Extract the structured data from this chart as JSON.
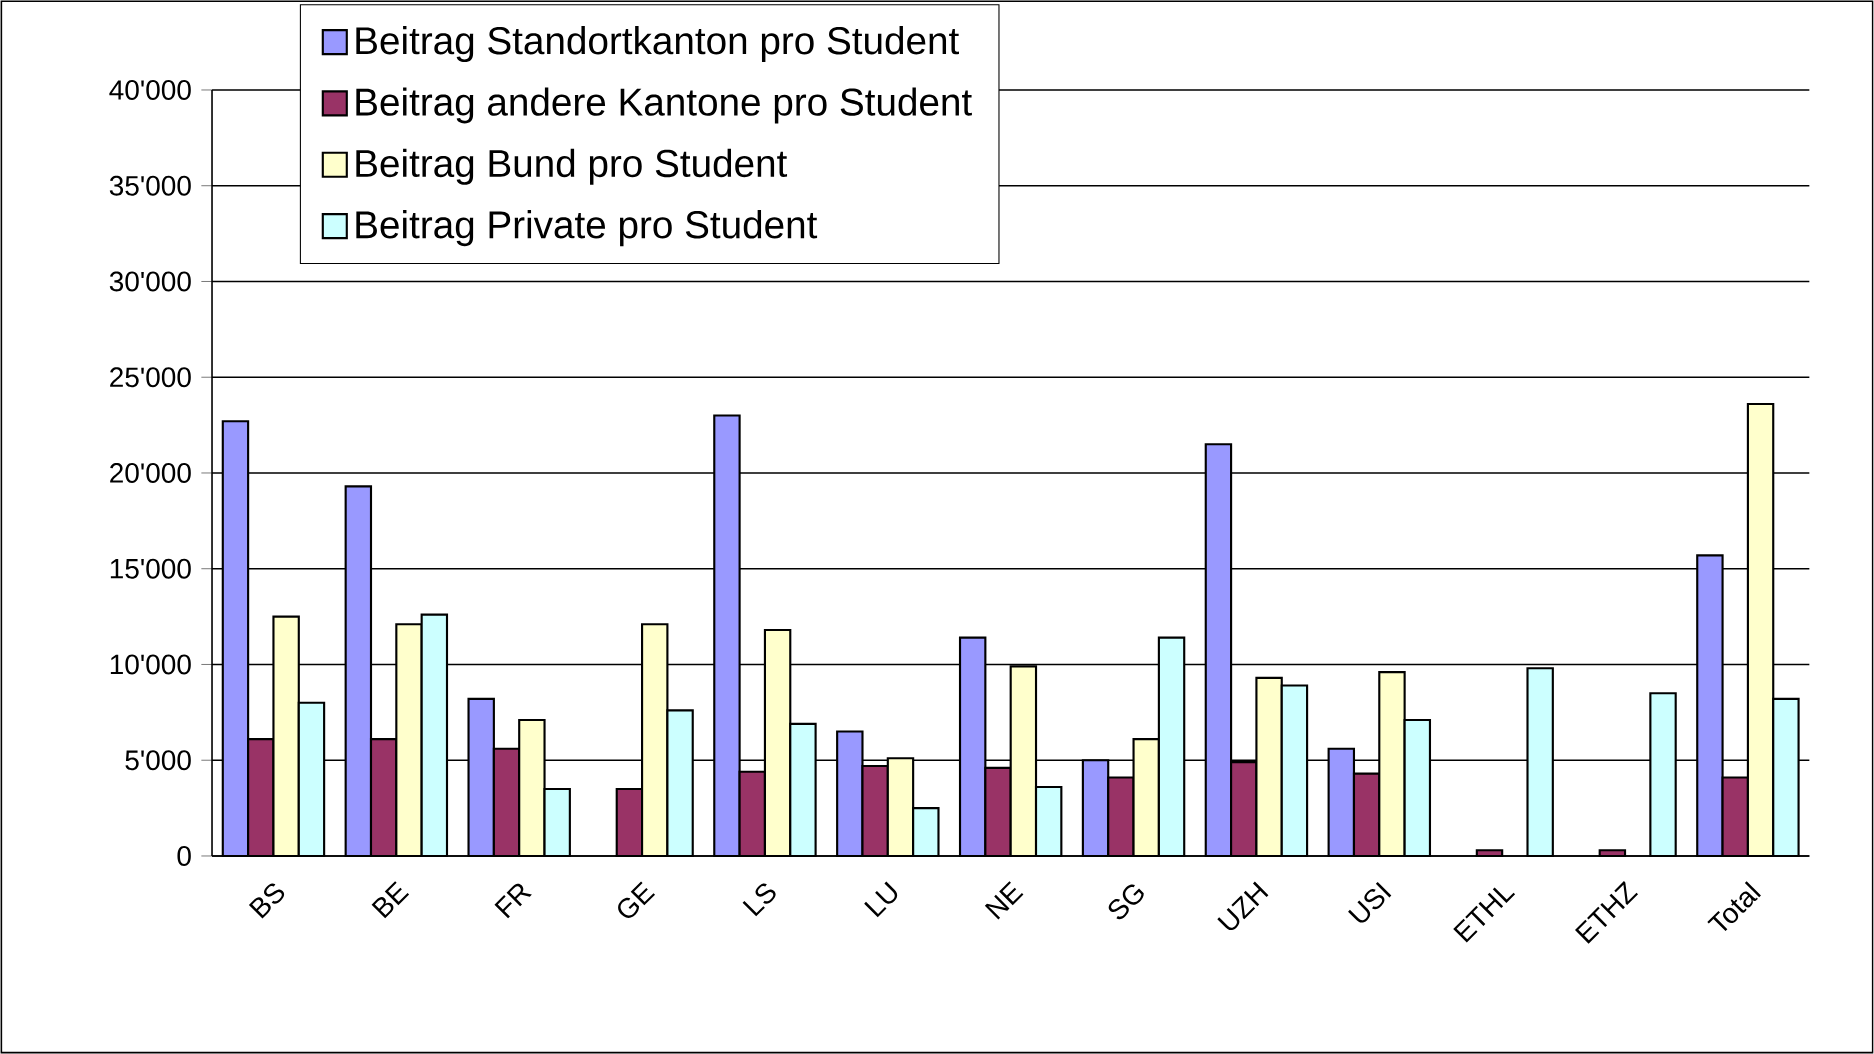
{
  "chart_data": {
    "type": "bar",
    "categories": [
      "BS",
      "BE",
      "FR",
      "GE",
      "LS",
      "LU",
      "NE",
      "SG",
      "UZH",
      "USI",
      "ETHL",
      "ETHZ",
      "Total"
    ],
    "series": [
      {
        "name": "Beitrag Standortkanton pro Student",
        "color": "#9999ff",
        "values": [
          22700,
          19300,
          8200,
          null,
          23000,
          6500,
          11400,
          5000,
          21500,
          5600,
          null,
          null,
          15700
        ]
      },
      {
        "name": "Beitrag andere Kantone pro Student",
        "color": "#993366",
        "values": [
          6100,
          6100,
          5600,
          3500,
          4400,
          4700,
          4600,
          4100,
          4900,
          4300,
          300,
          300,
          4100
        ]
      },
      {
        "name": "Beitrag Bund pro Student",
        "color": "#ffffcc",
        "values": [
          12500,
          12100,
          7100,
          12100,
          11800,
          5100,
          9900,
          6100,
          9300,
          9600,
          null,
          null,
          23600
        ]
      },
      {
        "name": "Beitrag Private pro Student",
        "color": "#ccffff",
        "values": [
          8000,
          12600,
          3500,
          7600,
          6900,
          2500,
          3600,
          11400,
          8900,
          7100,
          9800,
          8500,
          8200
        ]
      }
    ],
    "ylim": [
      0,
      40000
    ],
    "yticks": [
      0,
      {
        "value": 5000,
        "label": "5'000"
      },
      {
        "value": 10000,
        "label": "10'000"
      },
      {
        "value": 15000,
        "label": "15'000"
      },
      {
        "value": 20000,
        "label": "20'000"
      },
      {
        "value": 25000,
        "label": "25'000"
      },
      {
        "value": 30000,
        "label": "30'000"
      },
      {
        "value": 35000,
        "label": "35'000"
      },
      {
        "value": 40000,
        "label": "40'000"
      }
    ],
    "grid": "y",
    "legend": "top"
  }
}
